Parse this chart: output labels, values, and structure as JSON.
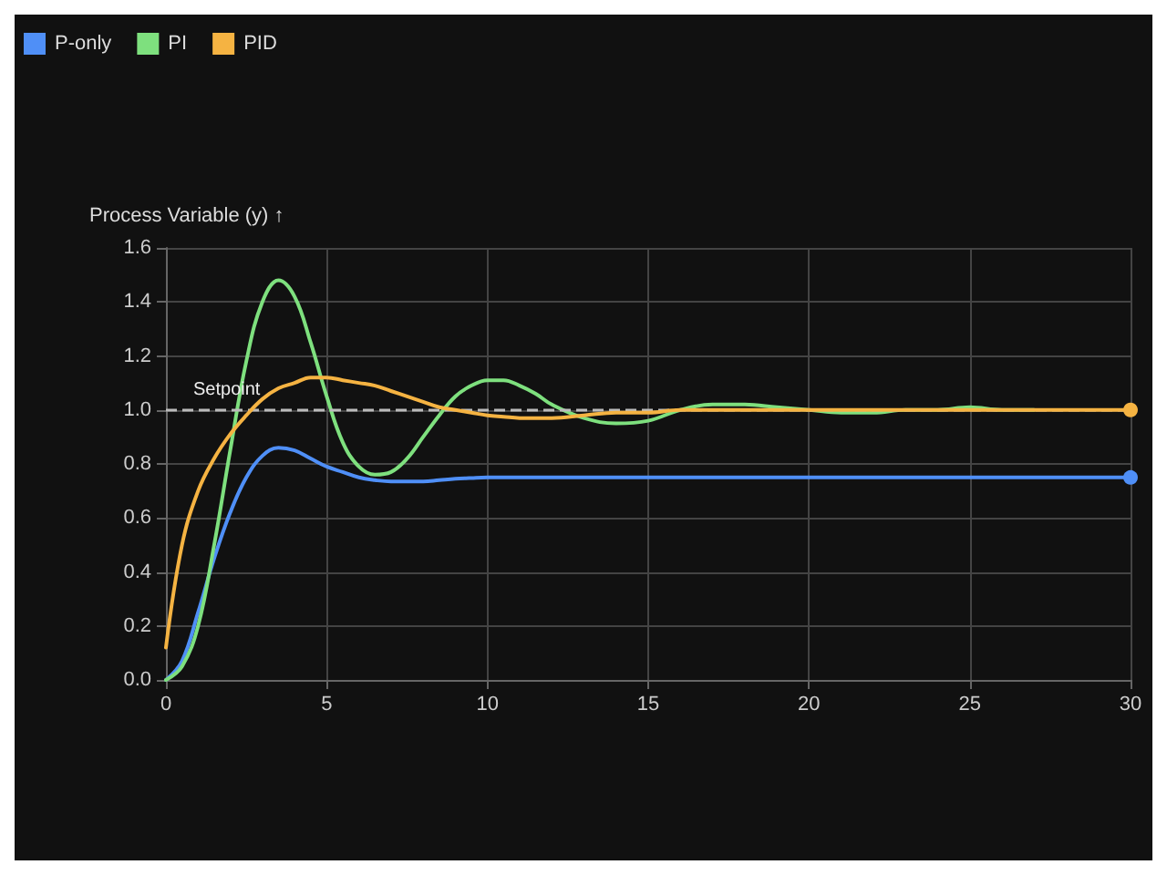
{
  "chart_data": {
    "type": "line",
    "ylabel": "Process Variable (y) ↑",
    "legend": "top left",
    "grid": true,
    "line_style": "solid",
    "x": [
      0,
      0.5,
      1,
      1.5,
      2,
      2.5,
      3,
      3.5,
      4,
      4.5,
      5,
      5.5,
      6,
      6.5,
      7,
      7.5,
      8,
      8.5,
      9,
      9.5,
      10,
      10.5,
      11,
      11.5,
      12,
      13,
      14,
      15,
      16,
      17,
      18,
      19,
      20,
      21,
      22,
      23,
      24,
      25,
      26,
      27,
      28,
      29,
      30
    ],
    "series": [
      {
        "name": "P-only",
        "color": "#4f8ff7",
        "values": [
          0,
          0.07,
          0.25,
          0.45,
          0.62,
          0.75,
          0.83,
          0.86,
          0.85,
          0.82,
          0.79,
          0.77,
          0.75,
          0.74,
          0.735,
          0.735,
          0.735,
          0.74,
          0.745,
          0.748,
          0.75,
          0.75,
          0.75,
          0.75,
          0.75,
          0.75,
          0.75,
          0.75,
          0.75,
          0.75,
          0.75,
          0.75,
          0.75,
          0.75,
          0.75,
          0.75,
          0.75,
          0.75,
          0.75,
          0.75,
          0.75,
          0.75,
          0.75
        ]
      },
      {
        "name": "PI",
        "color": "#7ee07e",
        "values": [
          0,
          0.05,
          0.2,
          0.5,
          0.85,
          1.18,
          1.4,
          1.48,
          1.42,
          1.25,
          1.05,
          0.88,
          0.79,
          0.76,
          0.77,
          0.82,
          0.9,
          0.98,
          1.05,
          1.09,
          1.11,
          1.11,
          1.09,
          1.06,
          1.02,
          0.97,
          0.95,
          0.96,
          1.0,
          1.02,
          1.02,
          1.01,
          1.0,
          0.99,
          0.99,
          1.0,
          1.0,
          1.01,
          1.0,
          1.0,
          null,
          null,
          null
        ]
      },
      {
        "name": "PID",
        "color": "#f5b342",
        "values": [
          0.12,
          0.5,
          0.7,
          0.82,
          0.91,
          0.98,
          1.04,
          1.08,
          1.1,
          1.12,
          1.12,
          1.11,
          1.1,
          1.09,
          1.07,
          1.05,
          1.03,
          1.01,
          1.0,
          0.99,
          0.98,
          0.975,
          0.97,
          0.97,
          0.97,
          0.98,
          0.99,
          0.99,
          1.0,
          1.0,
          1.0,
          1.0,
          1.0,
          1.0,
          1.0,
          1.0,
          1.0,
          1.0,
          1.0,
          1.0,
          1.0,
          1.0,
          1.0
        ]
      }
    ],
    "xlim": [
      0,
      30
    ],
    "xticks": [
      0,
      5,
      10,
      15,
      20,
      25,
      30
    ],
    "ylim": [
      0,
      1.6
    ],
    "yticks": [
      {
        "value": 0,
        "label": "0.0"
      },
      {
        "value": 0.2,
        "label": "0.2"
      },
      {
        "value": 0.4,
        "label": "0.4"
      },
      {
        "value": 0.6,
        "label": "0.6"
      },
      {
        "value": 0.8,
        "label": "0.8"
      },
      {
        "value": 1,
        "label": "1.0"
      },
      {
        "value": 1.2,
        "label": "1.2"
      },
      {
        "value": 1.4,
        "label": "1.4"
      },
      {
        "value": 1.6,
        "label": "1.6"
      }
    ],
    "ref_lines": [
      {
        "axis": "y",
        "value": 1,
        "label": "Setpoint",
        "color": "#bbbbbb",
        "line_style": "dashed"
      }
    ]
  }
}
